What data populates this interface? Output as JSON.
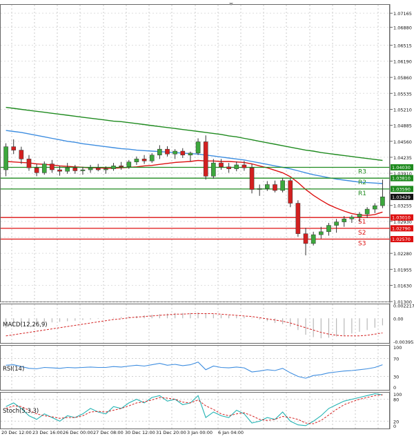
{
  "chart_data": {
    "type": "candlestick",
    "symbol": "",
    "main_panel": {
      "ylim": [
        1.013,
        1.0735
      ],
      "price_ticks": [
        "1.07165",
        "1.06880",
        "1.06515",
        "1.06190",
        "1.05860",
        "1.05535",
        "1.05210",
        "1.04885",
        "1.04560",
        "1.04235",
        "1.03910",
        "1.03255",
        "1.02930",
        "1.02605",
        "1.02280",
        "1.01955",
        "1.01630",
        "1.01300"
      ],
      "current_price": "1.03429",
      "candles": [
        {
          "o": 1.0398,
          "h": 1.0452,
          "l": 1.0385,
          "c": 1.0445
        },
        {
          "o": 1.0445,
          "h": 1.046,
          "l": 1.043,
          "c": 1.0438
        },
        {
          "o": 1.0438,
          "h": 1.0445,
          "l": 1.041,
          "c": 1.042
        },
        {
          "o": 1.042,
          "h": 1.0428,
          "l": 1.0396,
          "c": 1.0402
        },
        {
          "o": 1.0402,
          "h": 1.041,
          "l": 1.0385,
          "c": 1.0392
        },
        {
          "o": 1.0392,
          "h": 1.0415,
          "l": 1.0388,
          "c": 1.041
        },
        {
          "o": 1.041,
          "h": 1.0418,
          "l": 1.0392,
          "c": 1.0398
        },
        {
          "o": 1.0398,
          "h": 1.0406,
          "l": 1.0386,
          "c": 1.0395
        },
        {
          "o": 1.0395,
          "h": 1.0412,
          "l": 1.039,
          "c": 1.0402
        },
        {
          "o": 1.0402,
          "h": 1.0408,
          "l": 1.039,
          "c": 1.0396
        },
        {
          "o": 1.0396,
          "h": 1.0404,
          "l": 1.0388,
          "c": 1.0398
        },
        {
          "o": 1.0398,
          "h": 1.0408,
          "l": 1.0392,
          "c": 1.0402
        },
        {
          "o": 1.0402,
          "h": 1.041,
          "l": 1.0395,
          "c": 1.0398
        },
        {
          "o": 1.0398,
          "h": 1.0405,
          "l": 1.039,
          "c": 1.04
        },
        {
          "o": 1.04,
          "h": 1.0412,
          "l": 1.0396,
          "c": 1.0406
        },
        {
          "o": 1.0406,
          "h": 1.0414,
          "l": 1.0398,
          "c": 1.0404
        },
        {
          "o": 1.0404,
          "h": 1.0418,
          "l": 1.04,
          "c": 1.0414
        },
        {
          "o": 1.0414,
          "h": 1.0425,
          "l": 1.0408,
          "c": 1.042
        },
        {
          "o": 1.042,
          "h": 1.0428,
          "l": 1.041,
          "c": 1.0416
        },
        {
          "o": 1.0416,
          "h": 1.0432,
          "l": 1.0412,
          "c": 1.0428
        },
        {
          "o": 1.0428,
          "h": 1.0448,
          "l": 1.042,
          "c": 1.044
        },
        {
          "o": 1.044,
          "h": 1.0446,
          "l": 1.0425,
          "c": 1.043
        },
        {
          "o": 1.043,
          "h": 1.044,
          "l": 1.042,
          "c": 1.0436
        },
        {
          "o": 1.0436,
          "h": 1.0442,
          "l": 1.0422,
          "c": 1.0428
        },
        {
          "o": 1.0428,
          "h": 1.0435,
          "l": 1.0415,
          "c": 1.0432
        },
        {
          "o": 1.0432,
          "h": 1.0462,
          "l": 1.0428,
          "c": 1.0455
        },
        {
          "o": 1.0455,
          "h": 1.0468,
          "l": 1.0378,
          "c": 1.0385
        },
        {
          "o": 1.0385,
          "h": 1.042,
          "l": 1.038,
          "c": 1.0412
        },
        {
          "o": 1.0412,
          "h": 1.042,
          "l": 1.0398,
          "c": 1.0404
        },
        {
          "o": 1.0404,
          "h": 1.0412,
          "l": 1.0392,
          "c": 1.04
        },
        {
          "o": 1.04,
          "h": 1.0415,
          "l": 1.0395,
          "c": 1.0408
        },
        {
          "o": 1.0408,
          "h": 1.0416,
          "l": 1.0396,
          "c": 1.0402
        },
        {
          "o": 1.0402,
          "h": 1.041,
          "l": 1.035,
          "c": 1.0358
        },
        {
          "o": 1.0358,
          "h": 1.0368,
          "l": 1.0345,
          "c": 1.036
        },
        {
          "o": 1.036,
          "h": 1.0375,
          "l": 1.0355,
          "c": 1.0368
        },
        {
          "o": 1.0368,
          "h": 1.0376,
          "l": 1.0352,
          "c": 1.0356
        },
        {
          "o": 1.0356,
          "h": 1.0382,
          "l": 1.0352,
          "c": 1.0376
        },
        {
          "o": 1.0376,
          "h": 1.038,
          "l": 1.0322,
          "c": 1.033
        },
        {
          "o": 1.033,
          "h": 1.0336,
          "l": 1.0262,
          "c": 1.0268
        },
        {
          "o": 1.0268,
          "h": 1.028,
          "l": 1.0224,
          "c": 1.0248
        },
        {
          "o": 1.0248,
          "h": 1.0272,
          "l": 1.0244,
          "c": 1.0266
        },
        {
          "o": 1.0266,
          "h": 1.0282,
          "l": 1.0258,
          "c": 1.0272
        },
        {
          "o": 1.0272,
          "h": 1.029,
          "l": 1.0264,
          "c": 1.0285
        },
        {
          "o": 1.0285,
          "h": 1.0298,
          "l": 1.027,
          "c": 1.0292
        },
        {
          "o": 1.0292,
          "h": 1.0304,
          "l": 1.0282,
          "c": 1.0298
        },
        {
          "o": 1.0298,
          "h": 1.0306,
          "l": 1.029,
          "c": 1.0302
        },
        {
          "o": 1.0302,
          "h": 1.0312,
          "l": 1.0292,
          "c": 1.0308
        },
        {
          "o": 1.0308,
          "h": 1.0322,
          "l": 1.03,
          "c": 1.0318
        },
        {
          "o": 1.0318,
          "h": 1.033,
          "l": 1.031,
          "c": 1.0325
        },
        {
          "o": 1.0325,
          "h": 1.0378,
          "l": 1.032,
          "c": 1.0343
        }
      ],
      "moving_averages": [
        {
          "name": "",
          "color": "#dd1111",
          "values": [
            1.0415,
            1.0414,
            1.0413,
            1.0412,
            1.041,
            1.0409,
            1.0408,
            1.0406,
            1.0405,
            1.0404,
            1.0403,
            1.0402,
            1.0402,
            1.0401,
            1.0401,
            1.0402,
            1.0403,
            1.0404,
            1.0406,
            1.0407,
            1.0409,
            1.0411,
            1.0413,
            1.0414,
            1.0415,
            1.0417,
            1.0416,
            1.0416,
            1.0415,
            1.0415,
            1.0414,
            1.0413,
            1.041,
            1.0406,
            1.0402,
            1.0397,
            1.0392,
            1.0384,
            1.0372,
            1.0358,
            1.0346,
            1.0336,
            1.0327,
            1.032,
            1.0314,
            1.0309,
            1.0306,
            1.0305,
            1.0307,
            1.0312
          ]
        },
        {
          "name": "",
          "color": "#3d8de0",
          "values": [
            1.0478,
            1.0476,
            1.0474,
            1.0471,
            1.0468,
            1.0465,
            1.0462,
            1.0459,
            1.0456,
            1.0454,
            1.0451,
            1.0449,
            1.0447,
            1.0445,
            1.0443,
            1.0441,
            1.044,
            1.0438,
            1.0437,
            1.0436,
            1.0435,
            1.0434,
            1.0433,
            1.0432,
            1.0431,
            1.043,
            1.0428,
            1.0426,
            1.0424,
            1.0422,
            1.042,
            1.0418,
            1.0415,
            1.0412,
            1.0409,
            1.0406,
            1.0403,
            1.04,
            1.0396,
            1.0392,
            1.0388,
            1.0385,
            1.0382,
            1.0379,
            1.0377,
            1.0375,
            1.0373,
            1.0372,
            1.0371,
            1.037
          ]
        },
        {
          "name": "",
          "color": "#1e8a1e",
          "values": [
            1.0525,
            1.0523,
            1.0521,
            1.0519,
            1.0517,
            1.0515,
            1.0513,
            1.0511,
            1.0509,
            1.0507,
            1.0505,
            1.0503,
            1.0501,
            1.0499,
            1.0497,
            1.0496,
            1.0494,
            1.0492,
            1.049,
            1.0488,
            1.0486,
            1.0484,
            1.0482,
            1.048,
            1.0478,
            1.0476,
            1.0474,
            1.0472,
            1.047,
            1.0467,
            1.0465,
            1.0462,
            1.0459,
            1.0456,
            1.0453,
            1.045,
            1.0447,
            1.0444,
            1.0441,
            1.0438,
            1.0436,
            1.0433,
            1.0431,
            1.0429,
            1.0427,
            1.0425,
            1.0423,
            1.0421,
            1.0419,
            1.0417
          ]
        }
      ],
      "levels": [
        {
          "label": "R3",
          "value": 1.0403,
          "tag": "1.04030",
          "color": "#1e8a1e"
        },
        {
          "label": "R2",
          "value": 1.0381,
          "tag": "1.03810",
          "color": "#1e8a1e"
        },
        {
          "label": "R1",
          "value": 1.0359,
          "tag": "1.03590",
          "color": "#1e8a1e"
        },
        {
          "label": "S1",
          "value": 1.0301,
          "tag": "1.03010",
          "color": "#dd1111"
        },
        {
          "label": "S2",
          "value": 1.0279,
          "tag": "1.02790",
          "color": "#dd1111"
        },
        {
          "label": "S3",
          "value": 1.0257,
          "tag": "1.02570",
          "color": "#dd1111"
        }
      ]
    },
    "x_tick_labels": [
      "20 Dec 12:00",
      "23 Dec 16:00",
      "26 Dec 00:00",
      "27 Dec 08:00",
      "30 Dec 12:00",
      "31 Dec 20:00",
      "3 Jan 00:00",
      "6 Jan 04:00"
    ],
    "macd": {
      "label": "MACD(12,26,9)",
      "ticks": [
        "0.002217",
        "0.00",
        "-0.003952"
      ],
      "ylim": [
        -0.0042,
        0.0025
      ],
      "histogram": [
        -0.0016,
        -0.0014,
        -0.0012,
        -0.001,
        -0.0009,
        -0.0008,
        -0.0007,
        -0.0006,
        -0.0005,
        -0.0004,
        -0.0003,
        -0.0002,
        -0.0001,
        0.0,
        0.0001,
        0.0002,
        0.0003,
        0.0004,
        0.0005,
        0.0006,
        0.0007,
        0.0008,
        0.0009,
        0.0009,
        0.0009,
        0.001,
        0.0008,
        0.0007,
        0.0006,
        0.0005,
        0.0004,
        0.0003,
        0.0001,
        -0.0002,
        -0.0005,
        -0.0008,
        -0.001,
        -0.0014,
        -0.002,
        -0.0028,
        -0.0032,
        -0.0034,
        -0.0033,
        -0.0031,
        -0.0029,
        -0.0026,
        -0.0023,
        -0.002,
        -0.0016,
        -0.0012
      ],
      "signal": [
        -0.003,
        -0.0028,
        -0.0026,
        -0.0024,
        -0.0022,
        -0.002,
        -0.0018,
        -0.0016,
        -0.0014,
        -0.0012,
        -0.001,
        -0.0008,
        -0.0006,
        -0.0004,
        -0.0002,
        -0.0001,
        0.0001,
        0.0002,
        0.0003,
        0.0004,
        0.0005,
        0.0006,
        0.0007,
        0.0007,
        0.0008,
        0.0008,
        0.0008,
        0.0008,
        0.0007,
        0.0006,
        0.0005,
        0.0004,
        0.0003,
        0.0001,
        -0.0001,
        -0.0003,
        -0.0005,
        -0.0008,
        -0.0012,
        -0.0016,
        -0.002,
        -0.0024,
        -0.0027,
        -0.0029,
        -0.003,
        -0.003,
        -0.003,
        -0.0029,
        -0.0027,
        -0.0025
      ]
    },
    "rsi": {
      "label": "RSI(14)",
      "ticks": [
        "100",
        "70",
        "30",
        "0"
      ],
      "ylim": [
        0,
        100
      ],
      "values": [
        55,
        56,
        52,
        48,
        47,
        50,
        49,
        48,
        50,
        49,
        50,
        51,
        50,
        50,
        52,
        51,
        53,
        55,
        53,
        56,
        59,
        55,
        57,
        54,
        56,
        62,
        45,
        53,
        50,
        49,
        51,
        49,
        40,
        42,
        45,
        43,
        48,
        38,
        30,
        26,
        32,
        34,
        38,
        40,
        42,
        43,
        45,
        47,
        50,
        56
      ]
    },
    "stoch": {
      "label": "Stoch(5,3,3)",
      "ticks": [
        "100",
        "80",
        "20",
        "0"
      ],
      "ylim": [
        0,
        100
      ],
      "k": [
        60,
        70,
        55,
        35,
        25,
        40,
        30,
        20,
        35,
        30,
        40,
        55,
        45,
        40,
        60,
        55,
        70,
        80,
        70,
        85,
        90,
        75,
        80,
        65,
        70,
        90,
        30,
        45,
        35,
        30,
        50,
        40,
        15,
        20,
        30,
        25,
        45,
        20,
        10,
        8,
        20,
        35,
        55,
        65,
        75,
        80,
        85,
        90,
        95,
        92
      ],
      "d": [
        55,
        62,
        60,
        50,
        40,
        35,
        32,
        28,
        30,
        30,
        35,
        45,
        47,
        45,
        50,
        55,
        62,
        70,
        73,
        78,
        85,
        83,
        80,
        72,
        70,
        78,
        62,
        52,
        40,
        35,
        40,
        43,
        35,
        25,
        22,
        25,
        33,
        30,
        25,
        15,
        13,
        22,
        37,
        52,
        65,
        73,
        80,
        85,
        90,
        92
      ]
    }
  }
}
